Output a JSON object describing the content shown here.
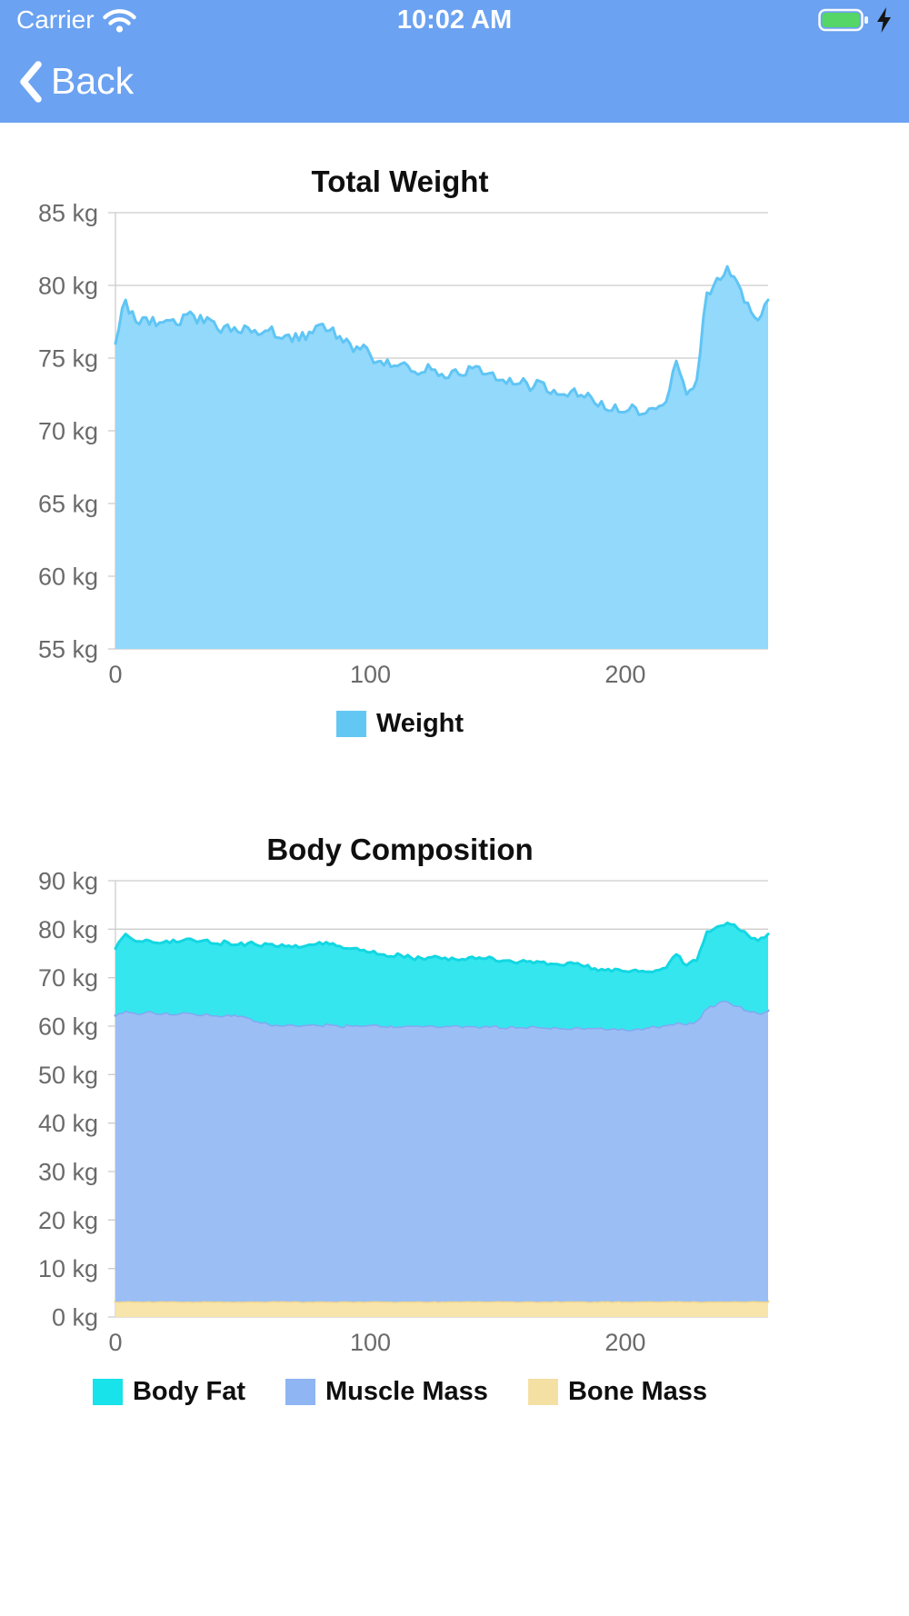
{
  "colors": {
    "header_blue": "#6BA2F1",
    "battery_green": "#55D666",
    "grid_gray": "#cccccc",
    "tick_gray": "#6a6a6a"
  },
  "status_bar": {
    "carrier": "Carrier",
    "time": "10:02 AM",
    "icons": [
      "wifi-icon",
      "battery-icon",
      "charging-bolt-icon"
    ]
  },
  "nav": {
    "back_label": "Back",
    "icons": [
      "back-chevron-icon"
    ]
  },
  "chart_data": [
    {
      "type": "area",
      "title": "Total Weight",
      "stacked": false,
      "grid": true,
      "legend_position": "bottom",
      "x_min": 0,
      "x_max": 256,
      "y_min": 55,
      "y_max": 85,
      "y_ticks": [
        {
          "v": 85,
          "label": "85 kg"
        },
        {
          "v": 80,
          "label": "80 kg"
        },
        {
          "v": 75,
          "label": "75 kg"
        },
        {
          "v": 70,
          "label": "70 kg"
        },
        {
          "v": 65,
          "label": "65 kg"
        },
        {
          "v": 60,
          "label": "60 kg"
        },
        {
          "v": 55,
          "label": "55 kg"
        }
      ],
      "x_ticks": [
        {
          "v": 0,
          "label": "0"
        },
        {
          "v": 100,
          "label": "100"
        },
        {
          "v": 200,
          "label": "200"
        }
      ],
      "x": [
        0,
        4,
        8,
        12,
        16,
        20,
        24,
        28,
        32,
        36,
        40,
        44,
        48,
        52,
        56,
        60,
        64,
        68,
        72,
        76,
        80,
        84,
        88,
        92,
        96,
        100,
        104,
        108,
        112,
        116,
        120,
        124,
        128,
        132,
        136,
        140,
        144,
        148,
        152,
        156,
        160,
        164,
        168,
        172,
        176,
        180,
        184,
        188,
        192,
        196,
        200,
        204,
        208,
        212,
        216,
        220,
        224,
        228,
        232,
        236,
        240,
        244,
        248,
        252,
        256
      ],
      "series": [
        {
          "name": "Weight",
          "fill": "#93D9FB",
          "stroke": "#5FC5F5",
          "noise": 0.45,
          "values": [
            76.0,
            79.0,
            77.5,
            77.8,
            77.2,
            77.6,
            77.3,
            78.0,
            77.4,
            77.8,
            77.0,
            77.3,
            76.8,
            77.1,
            76.6,
            76.9,
            76.4,
            76.6,
            76.2,
            76.8,
            77.3,
            76.9,
            76.5,
            76.0,
            75.6,
            75.2,
            74.8,
            74.4,
            74.6,
            74.1,
            74.0,
            74.2,
            73.9,
            74.1,
            73.8,
            74.3,
            73.9,
            74.0,
            73.5,
            73.2,
            73.6,
            73.0,
            73.3,
            72.8,
            72.5,
            72.9,
            72.3,
            71.9,
            71.5,
            71.8,
            71.3,
            71.6,
            71.2,
            71.5,
            72.0,
            74.8,
            72.5,
            73.5,
            79.5,
            80.5,
            81.3,
            80.2,
            78.8,
            77.6,
            79.0
          ]
        }
      ],
      "legend": [
        {
          "label": "Weight",
          "color": "#63C7F4"
        }
      ]
    },
    {
      "type": "area",
      "title": "Body Composition",
      "stacked": true,
      "grid": true,
      "legend_position": "bottom",
      "x_min": 0,
      "x_max": 256,
      "y_min": 0,
      "y_max": 90,
      "y_ticks": [
        {
          "v": 90,
          "label": "90 kg"
        },
        {
          "v": 80,
          "label": "80 kg"
        },
        {
          "v": 70,
          "label": "70 kg"
        },
        {
          "v": 60,
          "label": "60 kg"
        },
        {
          "v": 50,
          "label": "50 kg"
        },
        {
          "v": 40,
          "label": "40 kg"
        },
        {
          "v": 30,
          "label": "30 kg"
        },
        {
          "v": 20,
          "label": "20 kg"
        },
        {
          "v": 10,
          "label": "10 kg"
        },
        {
          "v": 0,
          "label": "0 kg"
        }
      ],
      "x_ticks": [
        {
          "v": 0,
          "label": "0"
        },
        {
          "v": 100,
          "label": "100"
        },
        {
          "v": 200,
          "label": "200"
        }
      ],
      "x": [
        0,
        4,
        8,
        12,
        16,
        20,
        24,
        28,
        32,
        36,
        40,
        44,
        48,
        52,
        56,
        60,
        64,
        68,
        72,
        76,
        80,
        84,
        88,
        92,
        96,
        100,
        104,
        108,
        112,
        116,
        120,
        124,
        128,
        132,
        136,
        140,
        144,
        148,
        152,
        156,
        160,
        164,
        168,
        172,
        176,
        180,
        184,
        188,
        192,
        196,
        200,
        204,
        208,
        212,
        216,
        220,
        224,
        228,
        232,
        236,
        240,
        244,
        248,
        252,
        256
      ],
      "series": [
        {
          "name": "Bone Mass",
          "fill": "#F8E5AC",
          "stroke": "#EFD78F",
          "noise": 0.1,
          "values": [
            3.2,
            3.2,
            3.2,
            3.2,
            3.2,
            3.2,
            3.2,
            3.2,
            3.2,
            3.2,
            3.2,
            3.2,
            3.2,
            3.2,
            3.2,
            3.2,
            3.2,
            3.2,
            3.2,
            3.2,
            3.2,
            3.2,
            3.2,
            3.2,
            3.2,
            3.2,
            3.2,
            3.2,
            3.2,
            3.2,
            3.2,
            3.2,
            3.2,
            3.2,
            3.2,
            3.2,
            3.2,
            3.2,
            3.2,
            3.2,
            3.2,
            3.2,
            3.2,
            3.2,
            3.2,
            3.2,
            3.2,
            3.2,
            3.2,
            3.2,
            3.2,
            3.2,
            3.2,
            3.2,
            3.2,
            3.2,
            3.2,
            3.2,
            3.2,
            3.2,
            3.2,
            3.2,
            3.2,
            3.2,
            3.2
          ]
        },
        {
          "name": "Muscle Mass",
          "fill": "#9BBEF5",
          "stroke": "#83A8EF",
          "noise": 0.3,
          "values": [
            59.0,
            60.0,
            59.5,
            59.8,
            59.4,
            59.7,
            59.3,
            59.6,
            59.2,
            59.5,
            59.0,
            59.3,
            58.9,
            58.6,
            57.8,
            57.3,
            57.0,
            57.2,
            56.9,
            57.1,
            57.0,
            57.2,
            56.8,
            57.0,
            56.9,
            57.1,
            56.8,
            57.0,
            56.7,
            56.9,
            56.8,
            57.0,
            56.7,
            56.9,
            56.6,
            56.8,
            56.7,
            56.9,
            56.5,
            56.8,
            56.6,
            56.9,
            56.5,
            56.7,
            56.4,
            56.6,
            56.3,
            56.5,
            56.2,
            56.4,
            56.1,
            56.3,
            56.5,
            56.7,
            57.0,
            57.5,
            57.2,
            58.0,
            60.5,
            61.5,
            62.0,
            61.0,
            60.0,
            59.5,
            60.0
          ]
        },
        {
          "name": "Body Fat",
          "fill": "#35E6EF",
          "stroke": "#12D7E2",
          "noise": 0.45,
          "values": [
            13.8,
            15.8,
            14.8,
            14.8,
            14.6,
            14.7,
            14.8,
            15.2,
            15.0,
            15.1,
            14.8,
            14.8,
            14.7,
            15.3,
            15.6,
            16.4,
            16.2,
            16.2,
            16.1,
            16.5,
            17.1,
            16.5,
            16.5,
            15.8,
            15.5,
            14.9,
            14.8,
            14.2,
            14.7,
            14.0,
            14.0,
            14.0,
            14.0,
            14.0,
            14.0,
            14.3,
            14.0,
            13.9,
            13.8,
            13.2,
            13.8,
            12.9,
            13.6,
            12.9,
            12.9,
            13.1,
            12.8,
            12.2,
            12.1,
            12.2,
            12.0,
            12.1,
            11.5,
            11.6,
            11.8,
            14.1,
            12.1,
            12.3,
            15.8,
            15.8,
            16.1,
            16.0,
            15.6,
            14.9,
            15.8
          ]
        }
      ],
      "legend": [
        {
          "label": "Body Fat",
          "color": "#18E2EA"
        },
        {
          "label": "Muscle Mass",
          "color": "#8FB5F2"
        },
        {
          "label": "Bone Mass",
          "color": "#F5E0A4"
        }
      ]
    }
  ]
}
